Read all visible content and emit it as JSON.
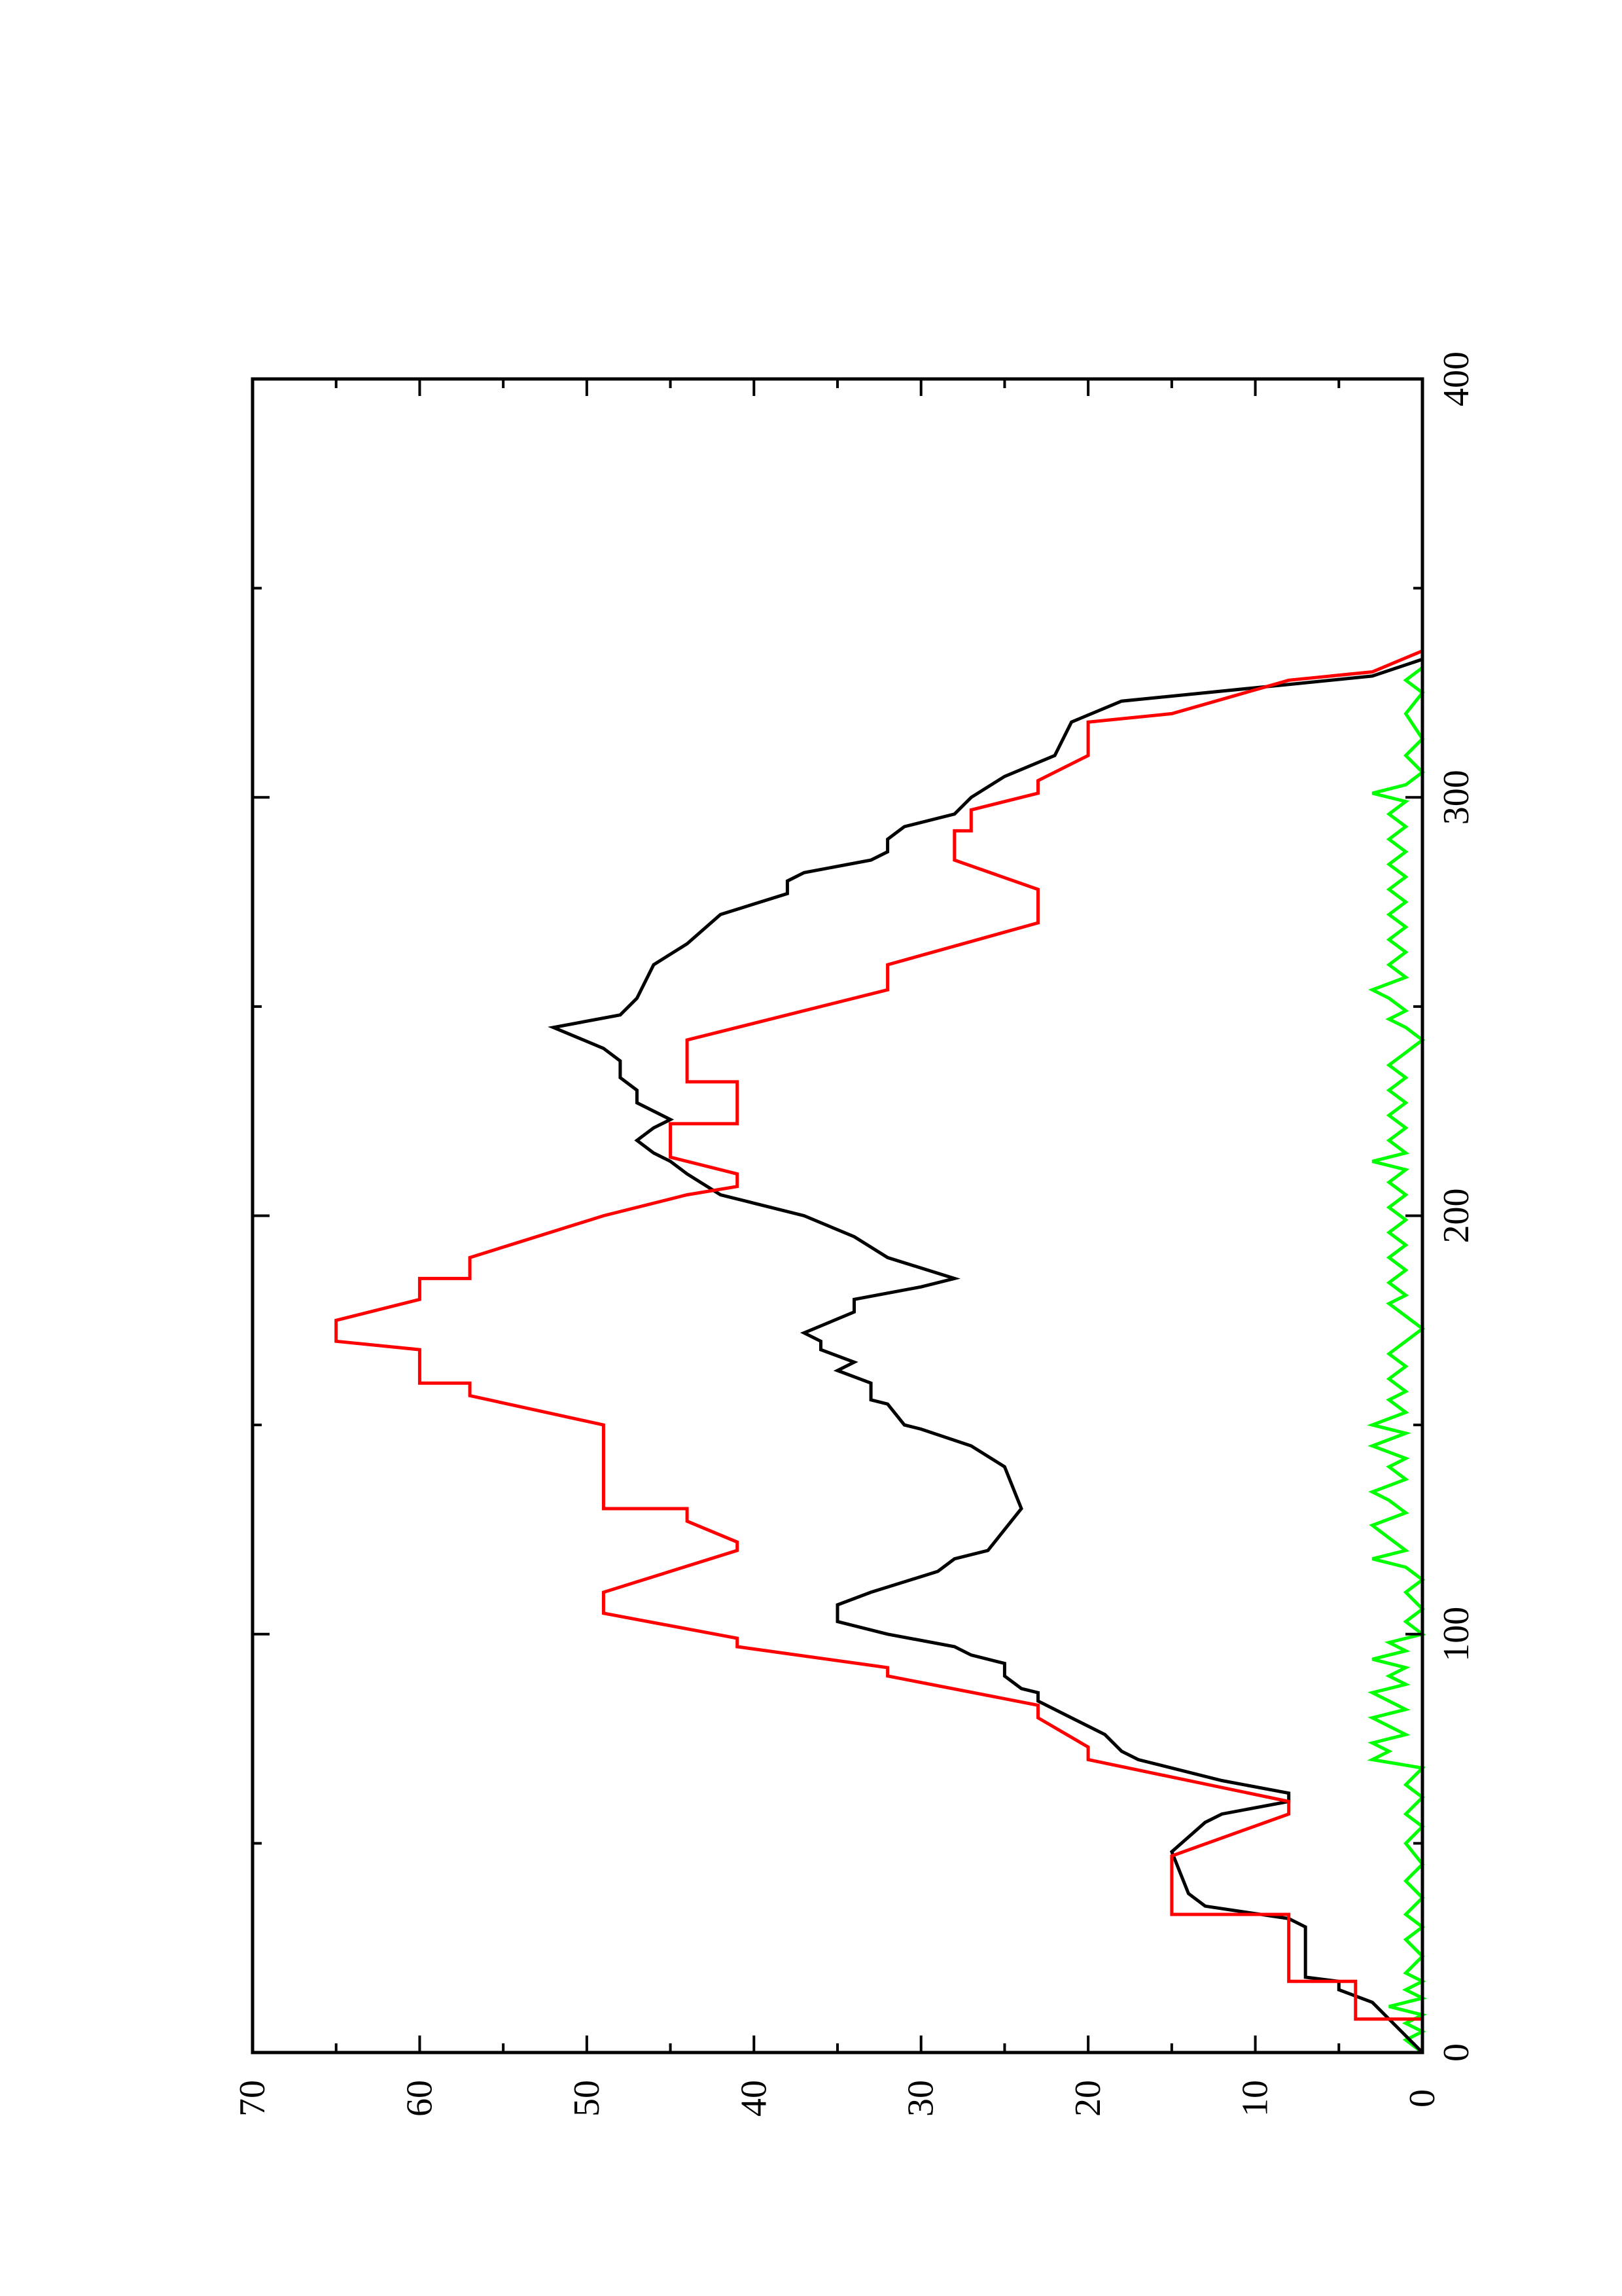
{
  "chart_data": {
    "type": "line",
    "orientation": "rotated-90-ccw",
    "title": "",
    "xlabel": "",
    "ylabel": "",
    "xlim": [
      0,
      400
    ],
    "ylim": [
      0,
      70
    ],
    "x_ticks": [
      "0",
      "100",
      "200",
      "300",
      "400"
    ],
    "y_ticks": [
      "0",
      "10",
      "20",
      "30",
      "40",
      "50",
      "60",
      "70"
    ],
    "grid": false,
    "legend": "none",
    "series": [
      {
        "color": "#ff0000",
        "shape": "step",
        "points": [
          [
            0,
            0
          ],
          [
            8,
            0
          ],
          [
            8,
            4
          ],
          [
            17,
            4
          ],
          [
            17,
            8
          ],
          [
            33,
            8
          ],
          [
            33,
            15
          ],
          [
            47,
            15
          ],
          [
            57,
            8
          ],
          [
            60,
            8
          ],
          [
            70,
            20
          ],
          [
            73,
            20
          ],
          [
            80,
            23
          ],
          [
            83,
            23
          ],
          [
            90,
            32
          ],
          [
            92,
            32
          ],
          [
            97,
            41
          ],
          [
            99,
            41
          ],
          [
            105,
            49
          ],
          [
            110,
            49
          ],
          [
            120,
            41
          ],
          [
            122,
            41
          ],
          [
            127,
            44
          ],
          [
            130,
            44
          ],
          [
            130,
            49
          ],
          [
            150,
            49
          ],
          [
            157,
            57
          ],
          [
            160,
            57
          ],
          [
            160,
            60
          ],
          [
            168,
            60
          ],
          [
            170,
            65
          ],
          [
            175,
            65
          ],
          [
            180,
            60
          ],
          [
            185,
            60
          ],
          [
            185,
            57
          ],
          [
            190,
            57
          ],
          [
            200,
            49
          ],
          [
            205,
            44
          ],
          [
            207,
            41
          ],
          [
            210,
            41
          ],
          [
            214,
            45
          ],
          [
            222,
            45
          ],
          [
            222,
            41
          ],
          [
            232,
            41
          ],
          [
            232,
            44
          ],
          [
            242,
            44
          ],
          [
            254,
            32
          ],
          [
            260,
            32
          ],
          [
            270,
            23
          ],
          [
            278,
            23
          ],
          [
            285,
            28
          ],
          [
            292,
            28
          ],
          [
            292,
            27
          ],
          [
            297,
            27
          ],
          [
            301,
            23
          ],
          [
            304,
            23
          ],
          [
            310,
            20
          ],
          [
            318,
            20
          ],
          [
            320,
            15
          ],
          [
            328,
            8
          ],
          [
            330,
            3
          ],
          [
            335,
            0
          ],
          [
            345,
            0
          ]
        ]
      },
      {
        "color": "#000000",
        "shape": "line",
        "points": [
          [
            0,
            0
          ],
          [
            8,
            2
          ],
          [
            12,
            3
          ],
          [
            15,
            5
          ],
          [
            17,
            5
          ],
          [
            18,
            7
          ],
          [
            30,
            7
          ],
          [
            32,
            8
          ],
          [
            35,
            13
          ],
          [
            38,
            14
          ],
          [
            48,
            15
          ],
          [
            55,
            13
          ],
          [
            57,
            12
          ],
          [
            60,
            8
          ],
          [
            62,
            8
          ],
          [
            65,
            12
          ],
          [
            70,
            17
          ],
          [
            72,
            18
          ],
          [
            76,
            19
          ],
          [
            80,
            21
          ],
          [
            84,
            23
          ],
          [
            86,
            23
          ],
          [
            87,
            24
          ],
          [
            90,
            25
          ],
          [
            93,
            25
          ],
          [
            95,
            27
          ],
          [
            97,
            28
          ],
          [
            100,
            32
          ],
          [
            103,
            35
          ],
          [
            107,
            35
          ],
          [
            110,
            33
          ],
          [
            115,
            29
          ],
          [
            118,
            28
          ],
          [
            120,
            26
          ],
          [
            125,
            25
          ],
          [
            130,
            24
          ],
          [
            140,
            25
          ],
          [
            145,
            27
          ],
          [
            149,
            30
          ],
          [
            150,
            31
          ],
          [
            155,
            32
          ],
          [
            156,
            33
          ],
          [
            160,
            33
          ],
          [
            163,
            35
          ],
          [
            165,
            34
          ],
          [
            168,
            36
          ],
          [
            170,
            36
          ],
          [
            172,
            37
          ],
          [
            177,
            34
          ],
          [
            180,
            34
          ],
          [
            183,
            30
          ],
          [
            185,
            28
          ],
          [
            190,
            32
          ],
          [
            195,
            34
          ],
          [
            200,
            37
          ],
          [
            203,
            40
          ],
          [
            205,
            42
          ],
          [
            210,
            44
          ],
          [
            213,
            45
          ],
          [
            215,
            46
          ],
          [
            218,
            47
          ],
          [
            221,
            46
          ],
          [
            223,
            45
          ],
          [
            227,
            47
          ],
          [
            230,
            47
          ],
          [
            233,
            48
          ],
          [
            237,
            48
          ],
          [
            240,
            49
          ],
          [
            245,
            52
          ],
          [
            248,
            48
          ],
          [
            252,
            47
          ],
          [
            260,
            46
          ],
          [
            265,
            44
          ],
          [
            272,
            42
          ],
          [
            277,
            38
          ],
          [
            280,
            38
          ],
          [
            282,
            37
          ],
          [
            285,
            33
          ],
          [
            287,
            32
          ],
          [
            290,
            32
          ],
          [
            293,
            31
          ],
          [
            296,
            28
          ],
          [
            300,
            27
          ],
          [
            305,
            25
          ],
          [
            310,
            22
          ],
          [
            318,
            21
          ],
          [
            323,
            18
          ],
          [
            327,
            8
          ],
          [
            329,
            3
          ],
          [
            333,
            0
          ],
          [
            345,
            0
          ]
        ]
      },
      {
        "color": "#00ff00",
        "shape": "line",
        "points": [
          [
            0,
            0
          ],
          [
            3,
            1
          ],
          [
            5,
            0
          ],
          [
            7,
            1
          ],
          [
            9,
            0
          ],
          [
            11,
            2
          ],
          [
            13,
            0
          ],
          [
            15,
            1
          ],
          [
            17,
            0
          ],
          [
            19,
            1
          ],
          [
            23,
            0
          ],
          [
            27,
            1
          ],
          [
            30,
            0
          ],
          [
            33,
            1
          ],
          [
            37,
            0
          ],
          [
            41,
            1
          ],
          [
            45,
            0
          ],
          [
            50,
            1
          ],
          [
            54,
            0
          ],
          [
            57,
            1
          ],
          [
            61,
            0
          ],
          [
            64,
            1
          ],
          [
            68,
            0
          ],
          [
            70,
            3
          ],
          [
            72,
            2
          ],
          [
            74,
            3
          ],
          [
            76,
            1
          ],
          [
            78,
            2
          ],
          [
            80,
            3
          ],
          [
            82,
            1
          ],
          [
            84,
            2
          ],
          [
            86,
            3
          ],
          [
            88,
            1
          ],
          [
            90,
            2
          ],
          [
            92,
            1
          ],
          [
            94,
            3
          ],
          [
            96,
            1
          ],
          [
            98,
            2
          ],
          [
            100,
            0
          ],
          [
            103,
            1
          ],
          [
            106,
            0
          ],
          [
            110,
            1
          ],
          [
            113,
            0
          ],
          [
            116,
            1
          ],
          [
            118,
            3
          ],
          [
            120,
            1
          ],
          [
            123,
            2
          ],
          [
            126,
            3
          ],
          [
            129,
            1
          ],
          [
            132,
            2
          ],
          [
            134,
            3
          ],
          [
            137,
            1
          ],
          [
            140,
            2
          ],
          [
            142,
            1
          ],
          [
            145,
            3
          ],
          [
            148,
            1
          ],
          [
            150,
            3
          ],
          [
            153,
            1
          ],
          [
            156,
            2
          ],
          [
            158,
            1
          ],
          [
            161,
            2
          ],
          [
            164,
            1
          ],
          [
            167,
            2
          ],
          [
            170,
            1
          ],
          [
            173,
            0
          ],
          [
            176,
            1
          ],
          [
            179,
            2
          ],
          [
            181,
            1
          ],
          [
            184,
            2
          ],
          [
            187,
            1
          ],
          [
            190,
            2
          ],
          [
            193,
            1
          ],
          [
            196,
            2
          ],
          [
            199,
            1
          ],
          [
            202,
            2
          ],
          [
            205,
            1
          ],
          [
            208,
            2
          ],
          [
            211,
            1
          ],
          [
            213,
            3
          ],
          [
            215,
            1
          ],
          [
            218,
            2
          ],
          [
            221,
            1
          ],
          [
            224,
            2
          ],
          [
            227,
            1
          ],
          [
            230,
            2
          ],
          [
            233,
            1
          ],
          [
            236,
            2
          ],
          [
            239,
            1
          ],
          [
            242,
            0
          ],
          [
            245,
            1
          ],
          [
            247,
            2
          ],
          [
            249,
            1
          ],
          [
            252,
            2
          ],
          [
            254,
            3
          ],
          [
            257,
            1
          ],
          [
            260,
            2
          ],
          [
            263,
            1
          ],
          [
            266,
            2
          ],
          [
            269,
            1
          ],
          [
            272,
            2
          ],
          [
            275,
            1
          ],
          [
            278,
            2
          ],
          [
            281,
            1
          ],
          [
            284,
            2
          ],
          [
            287,
            1
          ],
          [
            290,
            2
          ],
          [
            293,
            1
          ],
          [
            296,
            2
          ],
          [
            299,
            1
          ],
          [
            301,
            3
          ],
          [
            303,
            1
          ],
          [
            306,
            0
          ],
          [
            310,
            1
          ],
          [
            314,
            0
          ],
          [
            320,
            1
          ],
          [
            325,
            0
          ],
          [
            328,
            1
          ],
          [
            331,
            0
          ],
          [
            340,
            0
          ],
          [
            345,
            0
          ]
        ]
      }
    ]
  }
}
